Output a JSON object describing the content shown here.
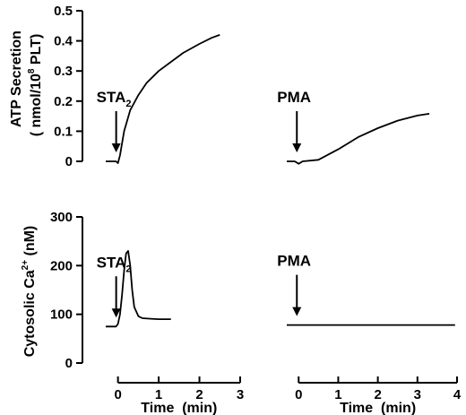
{
  "chart_data": [
    {
      "type": "line",
      "panel": "top-left",
      "ylabel_line1": "ATP Secretion",
      "ylabel_line2_pre": "( nmol/10",
      "ylabel_line2_sup": "8",
      "ylabel_line2_post": " PLT)",
      "yticks": [
        "0",
        "0.1",
        "0.2",
        "0.3",
        "0.4",
        "0.5"
      ],
      "ylim": [
        0,
        0.5
      ],
      "xlim": [
        -0.3,
        3
      ],
      "annotation": {
        "text": "STA",
        "sub": "2",
        "x": 0
      },
      "series": [
        {
          "x": [
            -0.3,
            -0.05,
            0.0,
            0.05,
            0.15,
            0.3,
            0.5,
            0.7,
            1.0,
            1.3,
            1.6,
            2.0,
            2.3,
            2.5
          ],
          "y": [
            0,
            0,
            -0.006,
            0.02,
            0.1,
            0.17,
            0.22,
            0.26,
            0.3,
            0.33,
            0.36,
            0.39,
            0.41,
            0.42
          ]
        }
      ]
    },
    {
      "type": "line",
      "panel": "top-right",
      "xlim": [
        -0.3,
        4
      ],
      "ylim": [
        0,
        0.5
      ],
      "annotation": {
        "text": "PMA",
        "sub": "",
        "x": 0
      },
      "series": [
        {
          "x": [
            -0.3,
            -0.1,
            0.0,
            0.1,
            0.5,
            1.0,
            1.5,
            2.0,
            2.5,
            3.0,
            3.3
          ],
          "y": [
            0,
            0,
            -0.008,
            0,
            0.005,
            0.04,
            0.08,
            0.11,
            0.135,
            0.152,
            0.158
          ]
        }
      ]
    },
    {
      "type": "line",
      "panel": "bottom-left",
      "ylabel_pre": "Cytosolic Ca",
      "ylabel_sup": "2+",
      "ylabel_post": " (nM)",
      "yticks": [
        "0",
        "100",
        "200",
        "300"
      ],
      "ylim": [
        0,
        300
      ],
      "xticks": [
        "0",
        "1",
        "2",
        "3"
      ],
      "xlim": [
        -0.3,
        3
      ],
      "xlabel": "Time  (min)",
      "annotation": {
        "text": "STA",
        "sub": "2",
        "x": 0
      },
      "series": [
        {
          "x": [
            -0.3,
            -0.05,
            0.0,
            0.05,
            0.1,
            0.15,
            0.2,
            0.25,
            0.3,
            0.35,
            0.4,
            0.5,
            0.6,
            0.8,
            1.0,
            1.3
          ],
          "y": [
            75,
            75,
            80,
            100,
            140,
            190,
            225,
            230,
            200,
            150,
            115,
            96,
            92,
            91,
            90,
            90
          ]
        }
      ]
    },
    {
      "type": "line",
      "panel": "bottom-right",
      "xticks": [
        "0",
        "1",
        "2",
        "3",
        "4"
      ],
      "xlim": [
        -0.3,
        4
      ],
      "ylim": [
        0,
        300
      ],
      "xlabel": "Time  (min)",
      "annotation": {
        "text": "PMA",
        "sub": "",
        "x": 0
      },
      "series": [
        {
          "x": [
            -0.3,
            3.95
          ],
          "y": [
            78,
            78
          ]
        }
      ]
    }
  ]
}
